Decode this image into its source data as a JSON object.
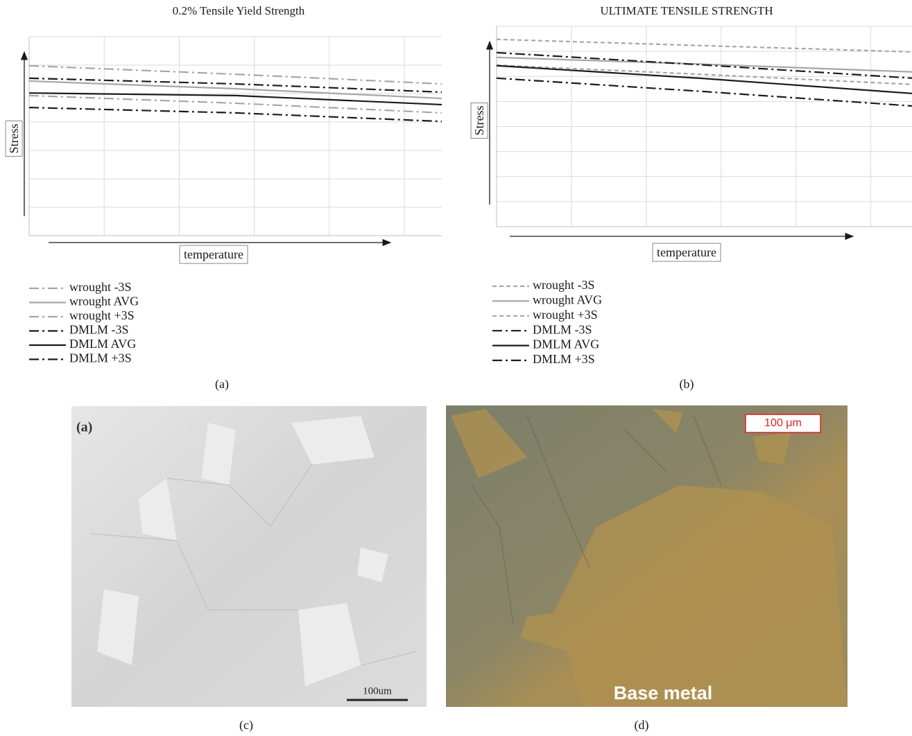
{
  "chart_data": [
    {
      "type": "line",
      "title": "0.2% Tensile Yield Strength",
      "x_label": "temperature",
      "y_label": "Stress",
      "panel_label": "(a)",
      "xlim": [
        0,
        5.5
      ],
      "ylim": [
        0,
        7
      ],
      "grid": true,
      "x": [
        0,
        2.75,
        5.5
      ],
      "series": [
        {
          "name": "wrought -3S",
          "color": "#a6a6a6",
          "dash": "dashdot",
          "values": [
            4.93,
            4.66,
            4.32
          ]
        },
        {
          "name": "wrought AVG",
          "color": "#a6a6a6",
          "dash": "solid",
          "values": [
            5.44,
            5.17,
            4.83
          ]
        },
        {
          "name": "wrought +3S",
          "color": "#a6a6a6",
          "dash": "dashdot",
          "values": [
            5.98,
            5.68,
            5.34
          ]
        },
        {
          "name": "DMLM -3S",
          "color": "#1a1a1a",
          "dash": "dashdot",
          "values": [
            4.51,
            4.32,
            4.02
          ]
        },
        {
          "name": "DMLM AVG",
          "color": "#1a1a1a",
          "dash": "solid",
          "values": [
            5.02,
            4.93,
            4.61
          ]
        },
        {
          "name": "DMLM +3S",
          "color": "#1a1a1a",
          "dash": "dashdot",
          "values": [
            5.54,
            5.34,
            5.05
          ]
        }
      ]
    },
    {
      "type": "line",
      "title": "ULTIMATE TENSILE STRENGTH",
      "x_label": "temperature",
      "y_label": "Stress",
      "panel_label": "(b)",
      "xlim": [
        0,
        5.55
      ],
      "ylim": [
        0,
        8
      ],
      "grid": true,
      "x": [
        0,
        2.75,
        5.55
      ],
      "series": [
        {
          "name": "wrought -3S",
          "color": "#a6a6a6",
          "dash": "dashed",
          "values": [
            6.45,
            6.08,
            5.68
          ]
        },
        {
          "name": "wrought AVG",
          "color": "#a6a6a6",
          "dash": "solid",
          "values": [
            6.76,
            6.49,
            6.18
          ]
        },
        {
          "name": "wrought +3S",
          "color": "#a6a6a6",
          "dash": "dashed",
          "values": [
            7.48,
            7.23,
            6.98
          ]
        },
        {
          "name": "DMLM -3S",
          "color": "#1a1a1a",
          "dash": "dashdot",
          "values": [
            5.93,
            5.4,
            4.82
          ]
        },
        {
          "name": "DMLM AVG",
          "color": "#1a1a1a",
          "dash": "solid",
          "values": [
            6.43,
            5.92,
            5.32
          ]
        },
        {
          "name": "DMLM +3S",
          "color": "#1a1a1a",
          "dash": "dashdot",
          "values": [
            6.95,
            6.46,
            5.93
          ]
        }
      ]
    }
  ],
  "images": [
    {
      "panel_label": "(c)",
      "inset_label": "(a)",
      "scale_bar": "100um"
    },
    {
      "panel_label": "(d)",
      "scale_bar": "100 μm",
      "caption": "Base metal"
    }
  ]
}
